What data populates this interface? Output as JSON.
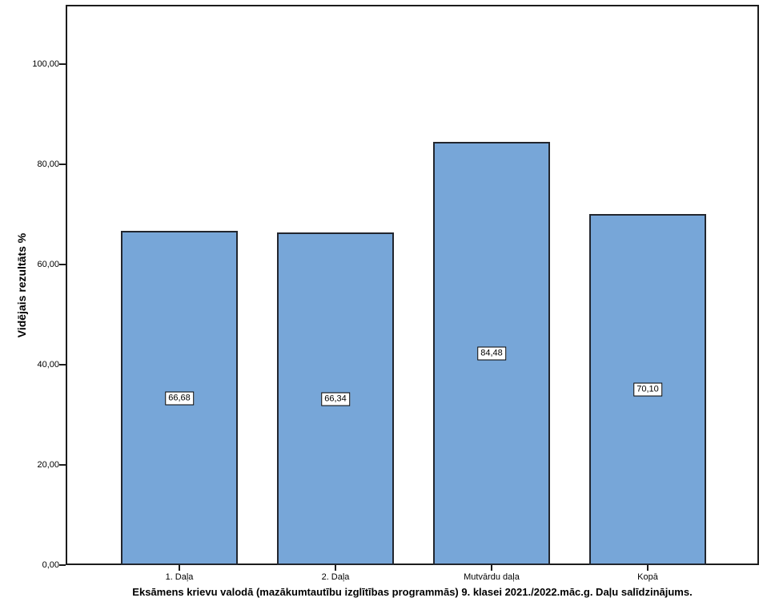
{
  "chart_data": {
    "type": "bar",
    "title": "Eksāmens krievu valodā (mazākumtautību izglītības programmās) 9. klasei 2021./2022.māc.g. Daļu salīdzinājums.",
    "ylabel": "Vidējais rezultāts %",
    "xlabel": "",
    "categories": [
      "1. Daļa",
      "2. Daļa",
      "Mutvārdu daļa",
      "Kopā"
    ],
    "values": [
      66.68,
      66.34,
      84.48,
      70.1
    ],
    "value_labels": [
      "66,68",
      "66,34",
      "84,48",
      "70,10"
    ],
    "ytick_values": [
      0,
      20,
      40,
      60,
      80,
      100
    ],
    "ytick_labels": [
      "0,00",
      "20,00",
      "40,00",
      "60,00",
      "80,00",
      "100,00"
    ],
    "ylim": [
      0,
      100
    ],
    "grid": false,
    "legend": "none",
    "bar_color": "#77a6d8",
    "bar_border_color": "#22262e",
    "axis_color": "#1c1c1c"
  }
}
